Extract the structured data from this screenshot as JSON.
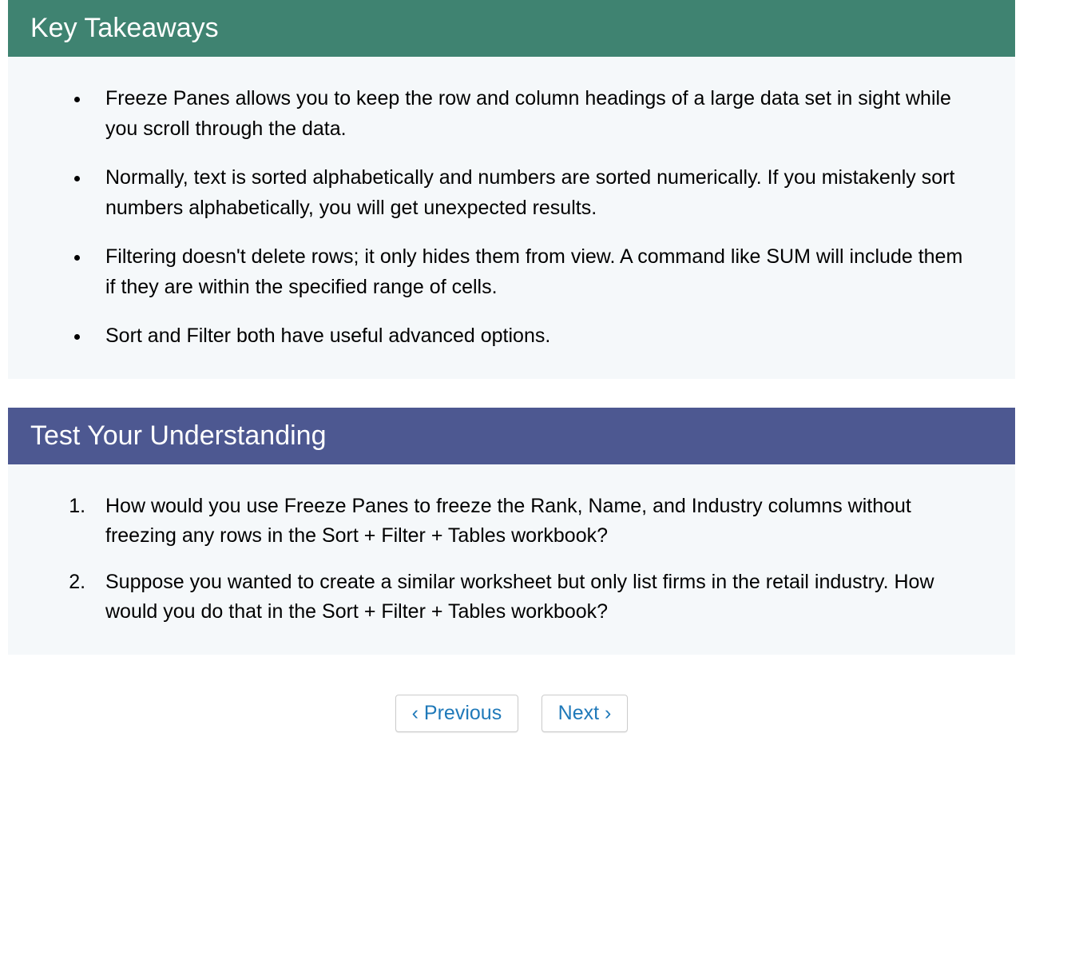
{
  "sections": {
    "keyTakeaways": {
      "title": "Key Takeaways",
      "headerColor": "#3f8371",
      "items": [
        "Freeze Panes allows you to keep the row and column headings of a large data set in sight while you scroll through the data.",
        "Normally, text is sorted alphabetically and numbers are sorted numerically. If you mistakenly sort numbers alphabetically, you will get unexpected results.",
        "Filtering doesn't delete rows; it only hides them from view. A command like SUM will include them if they are within the specified range of cells.",
        "Sort and Filter both have useful advanced options."
      ]
    },
    "testUnderstanding": {
      "title": "Test Your Understanding",
      "headerColor": "#4d5891",
      "items": [
        "How would you use Freeze Panes to freeze the Rank, Name, and Industry columns without freezing any rows in the Sort + Filter + Tables workbook?",
        "Suppose you wanted to create a similar worksheet but only list firms in the retail industry. How would you do that in the Sort + Filter + Tables workbook?"
      ]
    }
  },
  "nav": {
    "previousLabel": "‹ Previous",
    "nextLabel": "Next ›"
  },
  "bodyBackground": "#f5f8fa"
}
